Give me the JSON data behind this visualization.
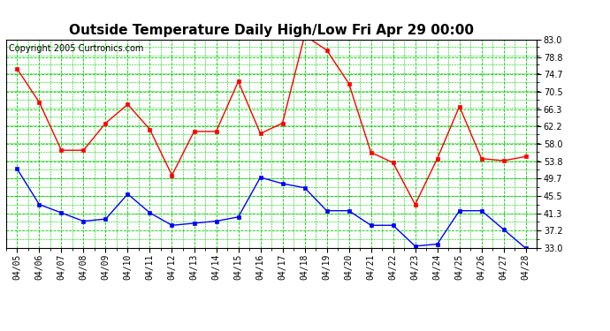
{
  "title": "Outside Temperature Daily High/Low Fri Apr 29 00:00",
  "copyright": "Copyright 2005 Curtronics.com",
  "dates": [
    "04/05",
    "04/06",
    "04/07",
    "04/08",
    "04/09",
    "04/10",
    "04/11",
    "04/12",
    "04/13",
    "04/14",
    "04/15",
    "04/16",
    "04/17",
    "04/18",
    "04/19",
    "04/20",
    "04/21",
    "04/22",
    "04/23",
    "04/24",
    "04/25",
    "04/26",
    "04/27",
    "04/28"
  ],
  "high": [
    76.0,
    68.0,
    56.5,
    56.5,
    63.0,
    67.5,
    61.5,
    50.5,
    61.0,
    61.0,
    73.0,
    60.5,
    63.0,
    84.0,
    80.5,
    72.5,
    56.0,
    53.5,
    43.5,
    54.5,
    67.0,
    54.5,
    54.0,
    55.0
  ],
  "low": [
    52.0,
    43.5,
    41.5,
    39.5,
    40.0,
    46.0,
    41.5,
    38.5,
    39.0,
    39.5,
    40.5,
    50.0,
    48.5,
    47.5,
    42.0,
    42.0,
    38.5,
    38.5,
    33.5,
    34.0,
    42.0,
    42.0,
    37.5,
    33.0
  ],
  "high_color": "#FF0000",
  "low_color": "#0000FF",
  "bg_color": "#FFFFFF",
  "grid_color": "#00CC00",
  "yticks": [
    33.0,
    37.2,
    41.3,
    45.5,
    49.7,
    53.8,
    58.0,
    62.2,
    66.3,
    70.5,
    74.7,
    78.8,
    83.0
  ],
  "ymin": 33.0,
  "ymax": 83.0,
  "title_fontsize": 11,
  "copyright_fontsize": 7,
  "tick_fontsize": 7,
  "markersize": 3.5
}
